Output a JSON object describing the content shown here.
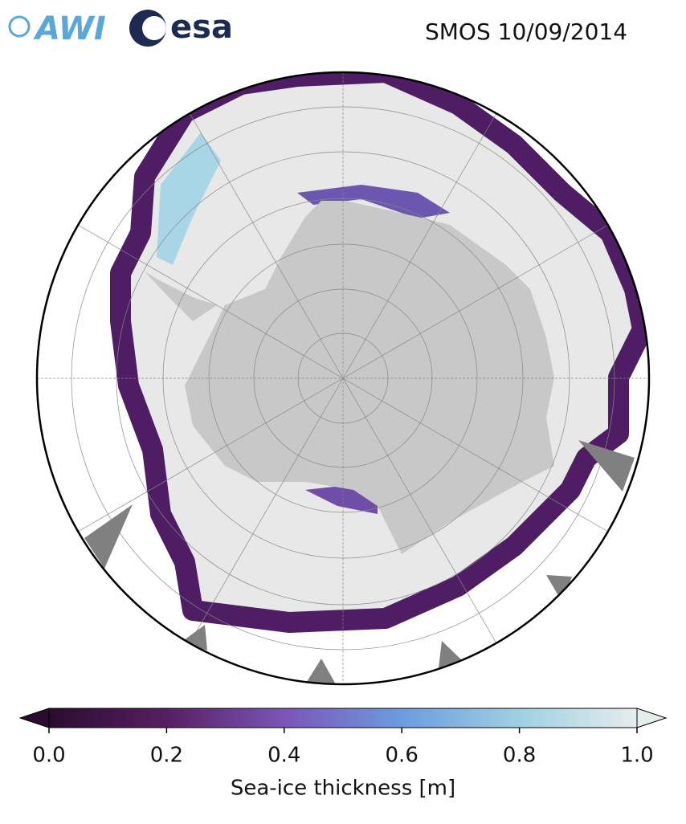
{
  "chart_data": {
    "type": "map",
    "logos": [
      "AWI",
      "esa"
    ],
    "title": "SMOS 10/09/2014",
    "colorbar": {
      "label": "Sea-ice thickness [m]",
      "lim": [
        0,
        1
      ],
      "ticks": [
        {
          "value": 0,
          "label": "0.0"
        },
        0.2,
        0.4,
        0.6,
        0.8,
        {
          "value": 1,
          "label": "1.0"
        }
      ],
      "colormap": [
        "#2a0c2e",
        "#571e63",
        "#7a55b8",
        "#6d9be0",
        "#9fd0e2",
        "#e6eded"
      ],
      "extend": "both"
    }
  }
}
